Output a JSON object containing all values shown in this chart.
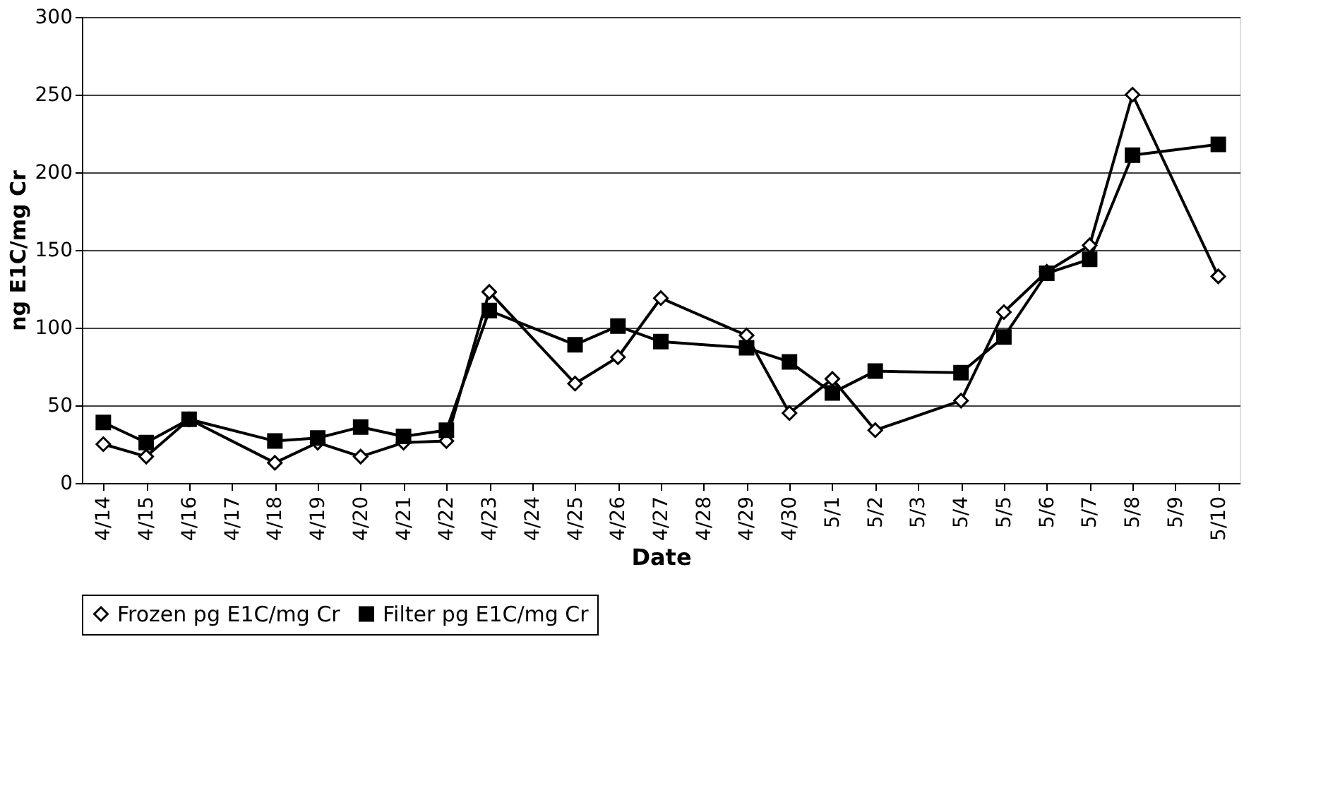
{
  "chart_data": {
    "type": "line",
    "xlabel": "Date",
    "ylabel": "ng E1C/mg Cr",
    "categories": [
      "4/14",
      "4/15",
      "4/16",
      "4/17",
      "4/18",
      "4/19",
      "4/20",
      "4/21",
      "4/22",
      "4/23",
      "4/24",
      "4/25",
      "4/26",
      "4/27",
      "4/28",
      "4/29",
      "4/30",
      "5/1",
      "5/2",
      "5/3",
      "5/4",
      "5/5",
      "5/6",
      "5/7",
      "5/8",
      "5/9",
      "5/10"
    ],
    "series": [
      {
        "name": "Frozen pg E1C/mg Cr",
        "color": "#000000",
        "marker": "diamond",
        "values": [
          25,
          17,
          41,
          null,
          13,
          26,
          17,
          26,
          27,
          123,
          null,
          64,
          81,
          119,
          null,
          95,
          45,
          67,
          34,
          null,
          53,
          110,
          136,
          153,
          250,
          null,
          133
        ]
      },
      {
        "name": "Filter pg E1C/mg Cr",
        "color": "#000000",
        "marker": "square",
        "values": [
          39,
          26,
          41,
          null,
          27,
          29,
          36,
          30,
          34,
          111,
          null,
          89,
          101,
          91,
          null,
          87,
          78,
          58,
          72,
          null,
          71,
          94,
          135,
          144,
          211,
          null,
          218
        ]
      }
    ],
    "ylim": [
      0,
      300
    ],
    "yticks": [
      0,
      50,
      100,
      150,
      200,
      250,
      300
    ],
    "grid": "y",
    "legend": "bottom",
    "line_style": "solid"
  }
}
